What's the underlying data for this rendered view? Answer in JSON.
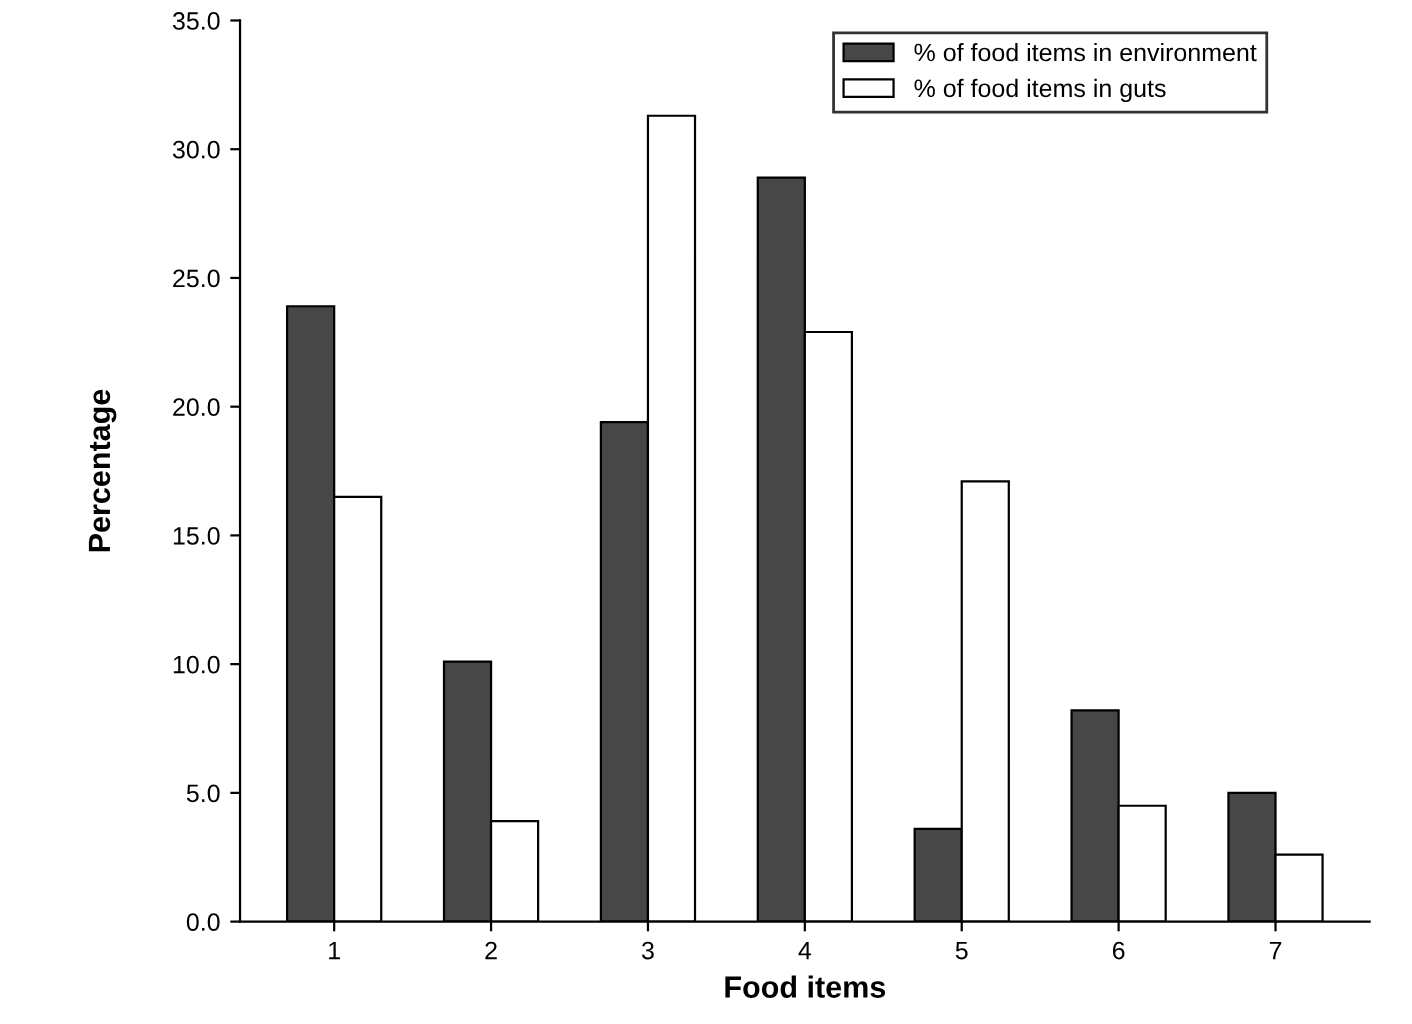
{
  "chart_data": {
    "type": "bar",
    "xlabel": "Food items",
    "ylabel": "Percentage",
    "categories": [
      "1",
      "2",
      "3",
      "4",
      "5",
      "6",
      "7"
    ],
    "series": [
      {
        "name": "% of food items in environment",
        "color": "#474747",
        "values": [
          23.9,
          10.1,
          19.4,
          28.9,
          3.6,
          8.2,
          5.0
        ]
      },
      {
        "name": "% of food items in guts",
        "color": "#ffffff",
        "values": [
          16.5,
          3.9,
          31.3,
          22.9,
          17.1,
          4.5,
          2.6
        ]
      }
    ],
    "ylim": [
      0,
      35
    ],
    "yticks": [
      {
        "value": 0,
        "label": "0.0"
      },
      {
        "value": 5,
        "label": "5.0"
      },
      {
        "value": 10,
        "label": "10.0"
      },
      {
        "value": 15,
        "label": "15.0"
      },
      {
        "value": 20,
        "label": "20.0"
      },
      {
        "value": 25,
        "label": "25.0"
      },
      {
        "value": 30,
        "label": "30.0"
      },
      {
        "value": 35,
        "label": "35.0"
      }
    ],
    "grid": false,
    "legend": "top right"
  }
}
